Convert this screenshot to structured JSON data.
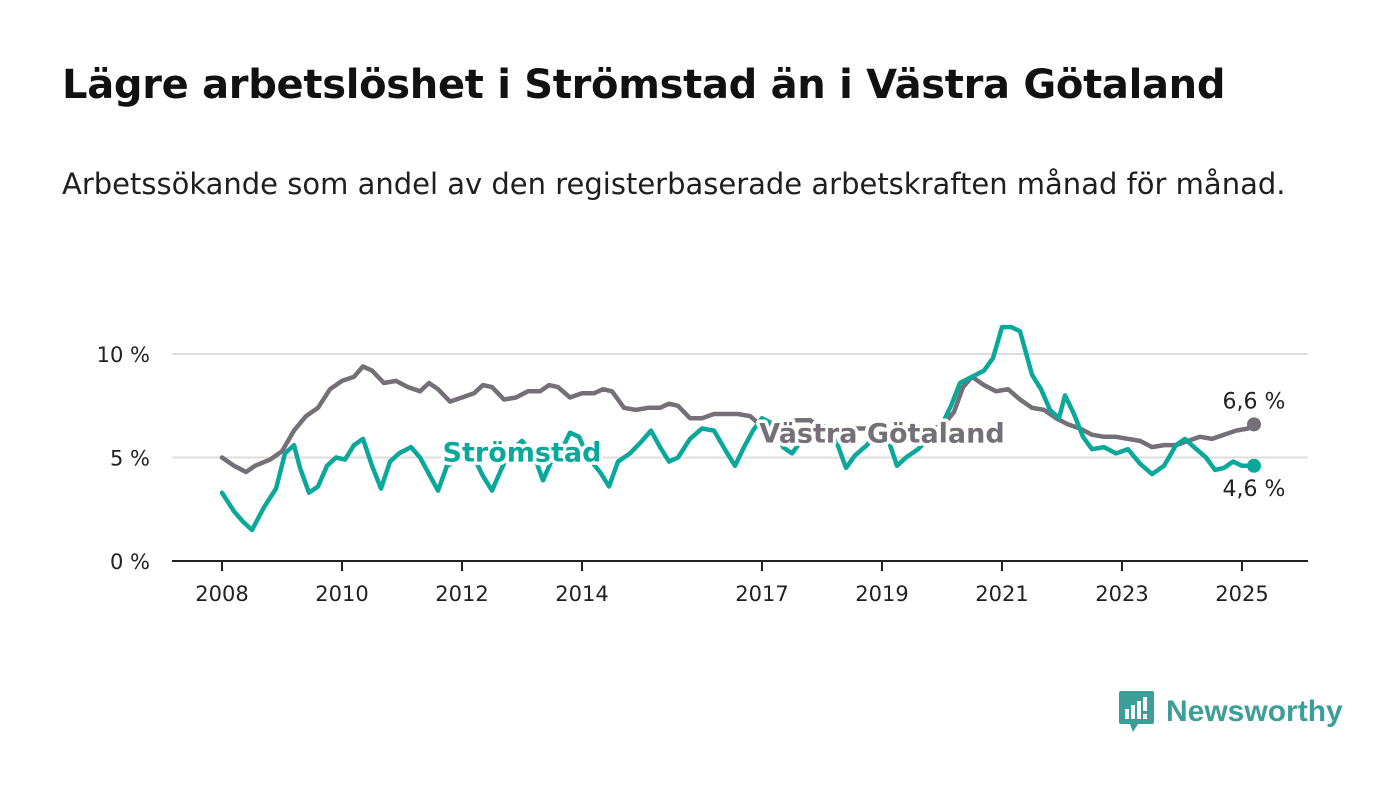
{
  "title": "Lägre arbetslöshet i Strömstad än i Västra Götaland",
  "subtitle": "Arbetssökande som andel av den registerbaserade arbetskraften månad för månad.",
  "brand": {
    "name": "Newsworthy",
    "icon": "newsworthy-logo-icon"
  },
  "colors": {
    "stromstad": "#0aa89a",
    "vg": "#757078",
    "grid": "#dddddd",
    "axis": "#222222",
    "text": "#222222"
  },
  "chart_data": {
    "type": "line",
    "xlim": [
      2008.0,
      2025.3
    ],
    "ylim": [
      0,
      10
    ],
    "yticks": [
      0,
      5,
      10
    ],
    "ytick_labels": [
      "0 %",
      "5 %",
      "10 %"
    ],
    "xticks": [
      2008,
      2010,
      2012,
      2014,
      2017,
      2019,
      2021,
      2023,
      2025
    ],
    "xtick_labels": [
      "2008",
      "2010",
      "2012",
      "2014",
      "2017",
      "2019",
      "2021",
      "2023",
      "2025"
    ],
    "grid": true,
    "series": [
      {
        "name": "Västra Götaland",
        "color": "#757078",
        "end_label": "6,6 %",
        "points": [
          [
            2008.0,
            5.0
          ],
          [
            2008.2,
            4.6
          ],
          [
            2008.4,
            4.3
          ],
          [
            2008.55,
            4.6
          ],
          [
            2008.8,
            4.9
          ],
          [
            2009.0,
            5.3
          ],
          [
            2009.2,
            6.3
          ],
          [
            2009.4,
            7.0
          ],
          [
            2009.6,
            7.4
          ],
          [
            2009.8,
            8.3
          ],
          [
            2010.0,
            8.7
          ],
          [
            2010.2,
            8.9
          ],
          [
            2010.35,
            9.4
          ],
          [
            2010.5,
            9.2
          ],
          [
            2010.7,
            8.6
          ],
          [
            2010.9,
            8.7
          ],
          [
            2011.1,
            8.4
          ],
          [
            2011.3,
            8.2
          ],
          [
            2011.45,
            8.6
          ],
          [
            2011.6,
            8.3
          ],
          [
            2011.8,
            7.7
          ],
          [
            2012.0,
            7.9
          ],
          [
            2012.2,
            8.1
          ],
          [
            2012.35,
            8.5
          ],
          [
            2012.5,
            8.4
          ],
          [
            2012.7,
            7.8
          ],
          [
            2012.9,
            7.9
          ],
          [
            2013.1,
            8.2
          ],
          [
            2013.3,
            8.2
          ],
          [
            2013.45,
            8.5
          ],
          [
            2013.6,
            8.4
          ],
          [
            2013.8,
            7.9
          ],
          [
            2014.0,
            8.1
          ],
          [
            2014.2,
            8.1
          ],
          [
            2014.35,
            8.3
          ],
          [
            2014.5,
            8.2
          ],
          [
            2014.7,
            7.4
          ],
          [
            2014.9,
            7.3
          ],
          [
            2015.1,
            7.4
          ],
          [
            2015.3,
            7.4
          ],
          [
            2015.45,
            7.6
          ],
          [
            2015.6,
            7.5
          ],
          [
            2015.8,
            6.9
          ],
          [
            2016.0,
            6.9
          ],
          [
            2016.2,
            7.1
          ],
          [
            2016.4,
            7.1
          ],
          [
            2016.6,
            7.1
          ],
          [
            2016.8,
            7.0
          ],
          [
            2017.0,
            6.5
          ],
          [
            2017.2,
            6.6
          ],
          [
            2017.4,
            6.7
          ],
          [
            2017.6,
            6.8
          ],
          [
            2017.8,
            6.8
          ],
          [
            2018.0,
            6.4
          ],
          [
            2018.2,
            6.4
          ],
          [
            2018.4,
            6.4
          ],
          [
            2018.6,
            6.4
          ],
          [
            2018.8,
            6.4
          ],
          [
            2019.0,
            6.2
          ],
          [
            2019.2,
            6.2
          ],
          [
            2019.4,
            6.3
          ],
          [
            2019.6,
            6.3
          ],
          [
            2019.8,
            6.4
          ],
          [
            2020.0,
            6.5
          ],
          [
            2020.2,
            7.2
          ],
          [
            2020.35,
            8.4
          ],
          [
            2020.5,
            8.9
          ],
          [
            2020.7,
            8.5
          ],
          [
            2020.9,
            8.2
          ],
          [
            2021.1,
            8.3
          ],
          [
            2021.3,
            7.8
          ],
          [
            2021.5,
            7.4
          ],
          [
            2021.7,
            7.3
          ],
          [
            2021.9,
            6.9
          ],
          [
            2022.1,
            6.6
          ],
          [
            2022.3,
            6.4
          ],
          [
            2022.5,
            6.1
          ],
          [
            2022.7,
            6.0
          ],
          [
            2022.9,
            6.0
          ],
          [
            2023.1,
            5.9
          ],
          [
            2023.3,
            5.8
          ],
          [
            2023.5,
            5.5
          ],
          [
            2023.7,
            5.6
          ],
          [
            2023.9,
            5.6
          ],
          [
            2024.1,
            5.8
          ],
          [
            2024.3,
            6.0
          ],
          [
            2024.5,
            5.9
          ],
          [
            2024.7,
            6.1
          ],
          [
            2024.9,
            6.3
          ],
          [
            2025.1,
            6.4
          ],
          [
            2025.2,
            6.6
          ]
        ]
      },
      {
        "name": "Strömstad",
        "color": "#0aa89a",
        "end_label": "4,6 %",
        "points": [
          [
            2008.0,
            3.3
          ],
          [
            2008.2,
            2.4
          ],
          [
            2008.35,
            1.9
          ],
          [
            2008.5,
            1.5
          ],
          [
            2008.7,
            2.6
          ],
          [
            2008.9,
            3.5
          ],
          [
            2009.05,
            5.2
          ],
          [
            2009.2,
            5.6
          ],
          [
            2009.3,
            4.5
          ],
          [
            2009.45,
            3.3
          ],
          [
            2009.6,
            3.6
          ],
          [
            2009.75,
            4.6
          ],
          [
            2009.9,
            5.0
          ],
          [
            2010.05,
            4.9
          ],
          [
            2010.2,
            5.6
          ],
          [
            2010.35,
            5.9
          ],
          [
            2010.5,
            4.6
          ],
          [
            2010.65,
            3.5
          ],
          [
            2010.8,
            4.8
          ],
          [
            2010.95,
            5.2
          ],
          [
            2011.15,
            5.5
          ],
          [
            2011.3,
            5.0
          ],
          [
            2011.45,
            4.2
          ],
          [
            2011.6,
            3.4
          ],
          [
            2011.75,
            4.6
          ],
          [
            2011.9,
            4.8
          ],
          [
            2012.05,
            5.6
          ],
          [
            2012.2,
            5.0
          ],
          [
            2012.35,
            4.1
          ],
          [
            2012.5,
            3.4
          ],
          [
            2012.65,
            4.4
          ],
          [
            2012.8,
            5.3
          ],
          [
            2013.0,
            5.8
          ],
          [
            2013.2,
            5.1
          ],
          [
            2013.35,
            3.9
          ],
          [
            2013.5,
            4.9
          ],
          [
            2013.65,
            5.3
          ],
          [
            2013.8,
            6.2
          ],
          [
            2013.95,
            6.0
          ],
          [
            2014.1,
            5.0
          ],
          [
            2014.3,
            4.3
          ],
          [
            2014.45,
            3.6
          ],
          [
            2014.6,
            4.8
          ],
          [
            2014.8,
            5.2
          ],
          [
            2015.0,
            5.8
          ],
          [
            2015.15,
            6.3
          ],
          [
            2015.3,
            5.5
          ],
          [
            2015.45,
            4.8
          ],
          [
            2015.6,
            5.0
          ],
          [
            2015.8,
            5.9
          ],
          [
            2016.0,
            6.4
          ],
          [
            2016.2,
            6.3
          ],
          [
            2016.4,
            5.3
          ],
          [
            2016.55,
            4.6
          ],
          [
            2016.7,
            5.5
          ],
          [
            2016.85,
            6.3
          ],
          [
            2017.0,
            6.9
          ],
          [
            2017.2,
            6.6
          ],
          [
            2017.35,
            5.5
          ],
          [
            2017.5,
            5.2
          ],
          [
            2017.7,
            6.0
          ],
          [
            2017.9,
            6.6
          ],
          [
            2018.05,
            6.5
          ],
          [
            2018.25,
            5.7
          ],
          [
            2018.4,
            4.5
          ],
          [
            2018.55,
            5.1
          ],
          [
            2018.75,
            5.6
          ],
          [
            2018.9,
            6.2
          ],
          [
            2019.1,
            5.9
          ],
          [
            2019.25,
            4.6
          ],
          [
            2019.4,
            5.0
          ],
          [
            2019.6,
            5.4
          ],
          [
            2019.8,
            6.0
          ],
          [
            2020.0,
            6.6
          ],
          [
            2020.15,
            7.5
          ],
          [
            2020.3,
            8.6
          ],
          [
            2020.5,
            8.9
          ],
          [
            2020.7,
            9.2
          ],
          [
            2020.85,
            9.8
          ],
          [
            2021.0,
            11.3
          ],
          [
            2021.15,
            11.3
          ],
          [
            2021.3,
            11.1
          ],
          [
            2021.5,
            9.0
          ],
          [
            2021.65,
            8.3
          ],
          [
            2021.8,
            7.3
          ],
          [
            2021.95,
            6.9
          ],
          [
            2022.05,
            8.0
          ],
          [
            2022.2,
            7.1
          ],
          [
            2022.35,
            6.0
          ],
          [
            2022.5,
            5.4
          ],
          [
            2022.7,
            5.5
          ],
          [
            2022.9,
            5.2
          ],
          [
            2023.1,
            5.4
          ],
          [
            2023.3,
            4.7
          ],
          [
            2023.5,
            4.2
          ],
          [
            2023.7,
            4.6
          ],
          [
            2023.9,
            5.6
          ],
          [
            2024.05,
            5.9
          ],
          [
            2024.2,
            5.5
          ],
          [
            2024.4,
            5.0
          ],
          [
            2024.55,
            4.4
          ],
          [
            2024.7,
            4.5
          ],
          [
            2024.85,
            4.8
          ],
          [
            2025.0,
            4.6
          ],
          [
            2025.2,
            4.6
          ]
        ]
      }
    ],
    "inline_labels": [
      {
        "series": "Strömstad",
        "text": "Strömstad",
        "x": 2013.0,
        "y": 5.3
      },
      {
        "series": "Västra Götaland",
        "text": "Västra Götaland",
        "x": 2019.0,
        "y": 6.2
      }
    ]
  }
}
